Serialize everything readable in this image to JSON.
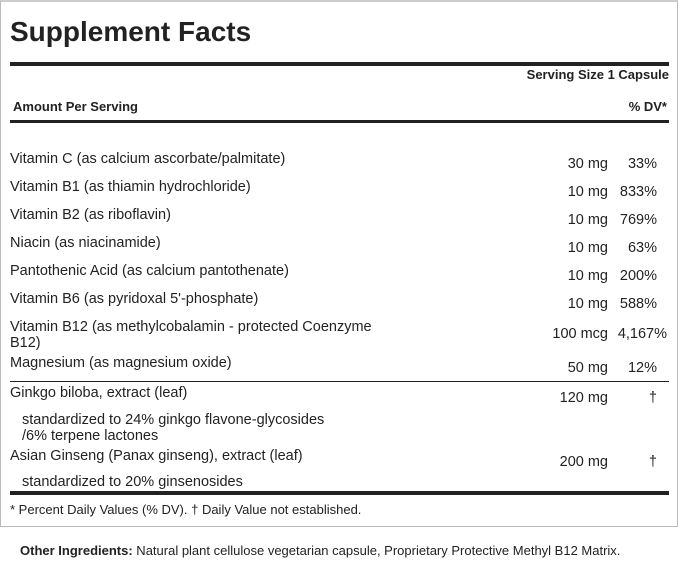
{
  "title": "Supplement Facts",
  "serving_size": "Serving Size 1 Capsule",
  "amount_per_serving": "Amount Per Serving",
  "dv_header": "% DV*",
  "nutrients": [
    {
      "name": "Vitamin C (as calcium ascorbate/palmitate)",
      "amount": "30 mg",
      "dv": "33%"
    },
    {
      "name": "Vitamin B1 (as thiamin hydrochloride)",
      "amount": "10 mg",
      "dv": "833%"
    },
    {
      "name": "Vitamin B2 (as riboflavin)",
      "amount": "10 mg",
      "dv": "769%"
    },
    {
      "name": "Niacin (as niacinamide)",
      "amount": "10 mg",
      "dv": "63%"
    },
    {
      "name": "Pantothenic Acid (as calcium pantothenate)",
      "amount": "10 mg",
      "dv": "200%"
    },
    {
      "name": "Vitamin B6 (as pyridoxal 5'-phosphate)",
      "amount": "10 mg",
      "dv": "588%"
    },
    {
      "name": "Vitamin B12 (as methylcobalamin - protected Coenzyme",
      "name2": "B12)",
      "amount": "100 mcg",
      "dv": "4,167%"
    },
    {
      "name": "Magnesium (as magnesium oxide)",
      "amount": "50 mg",
      "dv": "12%"
    }
  ],
  "botanicals": [
    {
      "name": "Ginkgo biloba, extract (leaf)",
      "amount": "120 mg",
      "dv": "†",
      "detail": "standardized to 24% ginkgo flavone-glycosides",
      "detail2": "/6% terpene lactones"
    },
    {
      "name": "Asian Ginseng (Panax ginseng), extract (leaf)",
      "amount": "200 mg",
      "dv": "†",
      "detail": "standardized to 20% ginsenosides"
    }
  ],
  "footnote": "* Percent Daily Values (% DV). † Daily Value not established.",
  "other_label": "Other Ingredients:",
  "other_text": " Natural plant cellulose vegetarian capsule, Proprietary Protective Methyl B12 Matrix."
}
